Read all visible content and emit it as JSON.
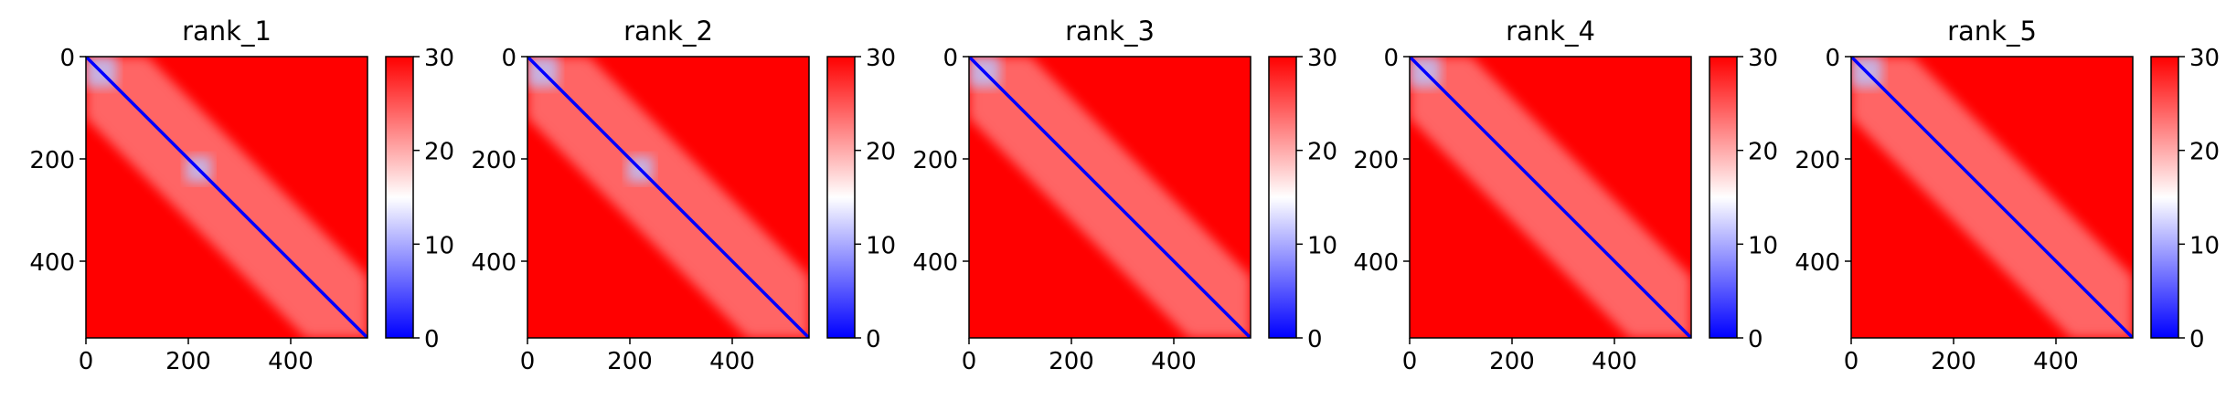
{
  "chart_data": [
    {
      "type": "heatmap",
      "title": "rank_1",
      "n": 550,
      "xticks": [
        0,
        200,
        400
      ],
      "yticks": [
        0,
        200,
        400
      ],
      "colorbar": {
        "min": 0,
        "max": 30,
        "ticks": [
          0,
          10,
          20,
          30
        ],
        "colors": [
          "#0000ff",
          "#ffffff",
          "#ff0000"
        ]
      },
      "low_error_blocks": [
        [
          0,
          60
        ],
        [
          195,
          245
        ]
      ]
    },
    {
      "type": "heatmap",
      "title": "rank_2",
      "n": 550,
      "xticks": [
        0,
        200,
        400
      ],
      "yticks": [
        0,
        200,
        400
      ],
      "colorbar": {
        "min": 0,
        "max": 30,
        "ticks": [
          0,
          10,
          20,
          30
        ],
        "colors": [
          "#0000ff",
          "#ffffff",
          "#ff0000"
        ]
      },
      "low_error_blocks": [
        [
          0,
          60
        ],
        [
          195,
          245
        ]
      ]
    },
    {
      "type": "heatmap",
      "title": "rank_3",
      "n": 550,
      "xticks": [
        0,
        200,
        400
      ],
      "yticks": [
        0,
        200,
        400
      ],
      "colorbar": {
        "min": 0,
        "max": 30,
        "ticks": [
          0,
          10,
          20,
          30
        ],
        "colors": [
          "#0000ff",
          "#ffffff",
          "#ff0000"
        ]
      },
      "low_error_blocks": [
        [
          0,
          60
        ]
      ]
    },
    {
      "type": "heatmap",
      "title": "rank_4",
      "n": 550,
      "xticks": [
        0,
        200,
        400
      ],
      "yticks": [
        0,
        200,
        400
      ],
      "colorbar": {
        "min": 0,
        "max": 30,
        "ticks": [
          0,
          10,
          20,
          30
        ],
        "colors": [
          "#0000ff",
          "#ffffff",
          "#ff0000"
        ]
      },
      "low_error_blocks": [
        [
          0,
          60
        ]
      ]
    },
    {
      "type": "heatmap",
      "title": "rank_5",
      "n": 550,
      "xticks": [
        0,
        200,
        400
      ],
      "yticks": [
        0,
        200,
        400
      ],
      "colorbar": {
        "min": 0,
        "max": 30,
        "ticks": [
          0,
          10,
          20,
          30
        ],
        "colors": [
          "#0000ff",
          "#ffffff",
          "#ff0000"
        ]
      },
      "low_error_blocks": [
        [
          0,
          60
        ]
      ]
    }
  ]
}
